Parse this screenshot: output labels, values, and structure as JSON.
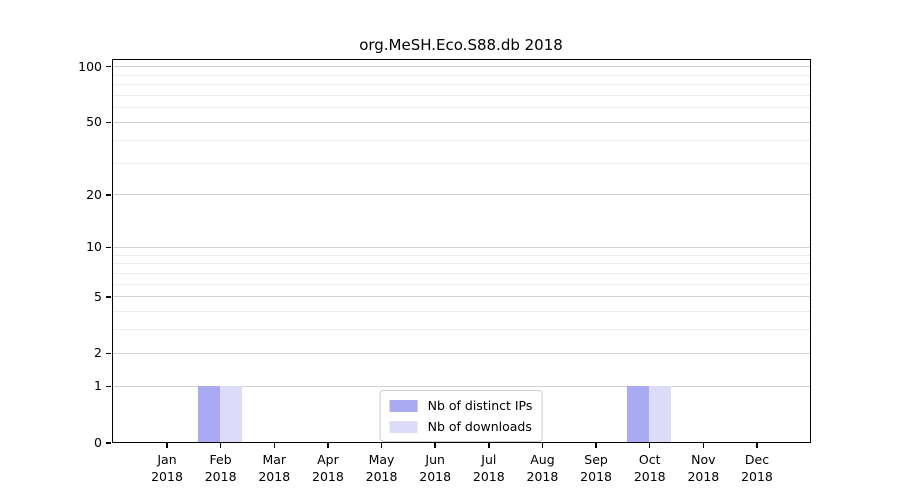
{
  "title": "org.MeSH.Eco.S88.db 2018",
  "colors": {
    "distinct_ips_bar": "#aaaaf3",
    "downloads_bar": "#dcdcf8",
    "grid_major": "#d2d2d2",
    "grid_minor": "#ebebeb",
    "spine": "#000000",
    "legend_border": "#cccccc",
    "text": "#000000"
  },
  "chart_data": {
    "type": "bar",
    "title": "org.MeSH.Eco.S88.db 2018",
    "scale": "log1p",
    "categories": [
      "Jan",
      "Feb",
      "Mar",
      "Apr",
      "May",
      "Jun",
      "Jul",
      "Aug",
      "Sep",
      "Oct",
      "Nov",
      "Dec"
    ],
    "year_label": "2018",
    "series": [
      {
        "name": "Nb of distinct IPs",
        "color": "#aaaaf3",
        "values": [
          0,
          1,
          0,
          0,
          0,
          0,
          0,
          0,
          0,
          1,
          0,
          0
        ]
      },
      {
        "name": "Nb of downloads",
        "color": "#dcdcf8",
        "values": [
          0,
          1,
          0,
          0,
          0,
          0,
          0,
          0,
          0,
          1,
          0,
          0
        ]
      }
    ],
    "y_ticks": [
      0,
      1,
      2,
      5,
      10,
      20,
      50,
      100
    ],
    "minor_gridlines": [
      3,
      4,
      6,
      7,
      8,
      9,
      30,
      40,
      60,
      70,
      80,
      90
    ],
    "ylim": [
      0,
      110
    ],
    "xlabel": "",
    "ylabel": "",
    "grid": true,
    "legend_position": "lower center"
  },
  "legend": {
    "item1": "Nb of distinct IPs",
    "item2": "Nb of downloads"
  }
}
